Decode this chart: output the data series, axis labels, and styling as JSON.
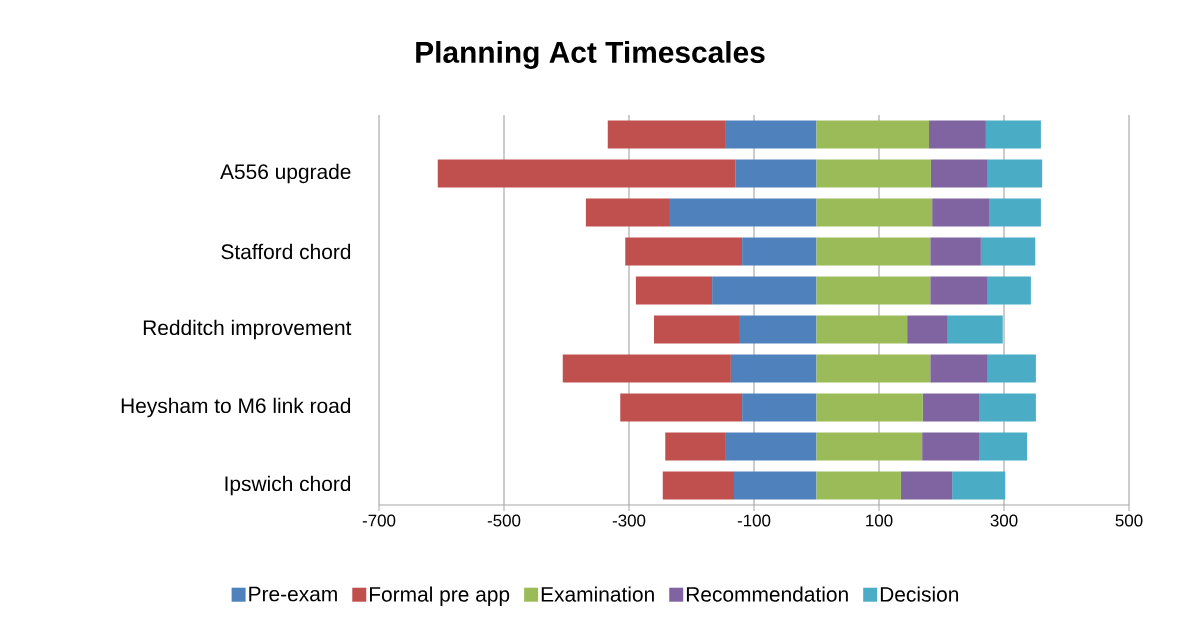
{
  "chart_data": {
    "type": "bar",
    "orientation": "horizontal",
    "stacked": true,
    "title": "Planning Act Timescales",
    "categories": [
      null,
      "A556 upgrade",
      null,
      "Stafford chord",
      null,
      "Redditch improvement",
      null,
      "Heysham to M6 link road",
      null,
      "Ipswich chord"
    ],
    "series": [
      {
        "name": "Pre-exam",
        "color": "#4f81bd",
        "values": [
          -145,
          -130,
          -236,
          -119,
          -167,
          -124,
          -137,
          -119,
          -145,
          -132
        ]
      },
      {
        "name": "Formal pre app",
        "color": "#c0504d",
        "values": [
          -189,
          -476,
          -133,
          -187,
          -122,
          -136,
          -269,
          -195,
          -97,
          -114
        ]
      },
      {
        "name": "Examination",
        "color": "#9bbb59",
        "values": [
          180,
          183,
          185,
          182,
          182,
          145,
          182,
          170,
          169,
          135
        ]
      },
      {
        "name": "Recommendation",
        "color": "#8064a2",
        "values": [
          91,
          91,
          91,
          81,
          92,
          65,
          92,
          90,
          91,
          82
        ]
      },
      {
        "name": "Decision",
        "color": "#4bacc6",
        "values": [
          88,
          87,
          83,
          87,
          69,
          88,
          77,
          91,
          77,
          85
        ]
      }
    ],
    "xlim": [
      -700,
      500
    ],
    "xticks": [
      -700,
      -500,
      -300,
      -100,
      100,
      300,
      500
    ],
    "grid": "x",
    "legend": "bottom"
  }
}
